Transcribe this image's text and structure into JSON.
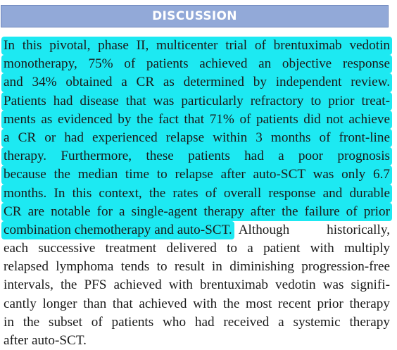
{
  "section": {
    "title": "DISCUSSION"
  },
  "colors": {
    "header_background": "#92a9d8",
    "highlight": "#1de9f2",
    "text": "#1a1a1a"
  },
  "paragraph": {
    "highlighted_lines": [
      "In this pivotal, phase II, multicenter trial of brentuximab vedotin",
      "monotherapy, 75% of patients achieved an objective response",
      "and 34% obtained a CR as determined by independent review.",
      "Patients had disease that was particularly refractory to prior treat-",
      "ments as evidenced by the fact that 71% of patients did not achieve",
      "a CR or had experienced relapse within 3 months of front-line",
      "therapy. Furthermore, these patients had a poor prognosis",
      "because the median time to relapse after auto-SCT was only 6.7",
      "months. In this context, the rates of overall response and durable",
      "CR are notable for a single-agent therapy after the failure of prior"
    ],
    "mixed_line": {
      "highlighted": "combination chemotherapy and auto-SCT.",
      "plain": "Although historically,"
    },
    "plain_lines": [
      "each successive treatment delivered to a patient with multiply",
      "relapsed lymphoma tends to result in diminishing progression-free",
      "intervals, the PFS achieved with brentuximab vedotin was signifi-",
      "cantly longer than that achieved with the most recent prior therapy",
      "in the subset of patients who had received a systemic therapy",
      "after auto-SCT."
    ]
  }
}
